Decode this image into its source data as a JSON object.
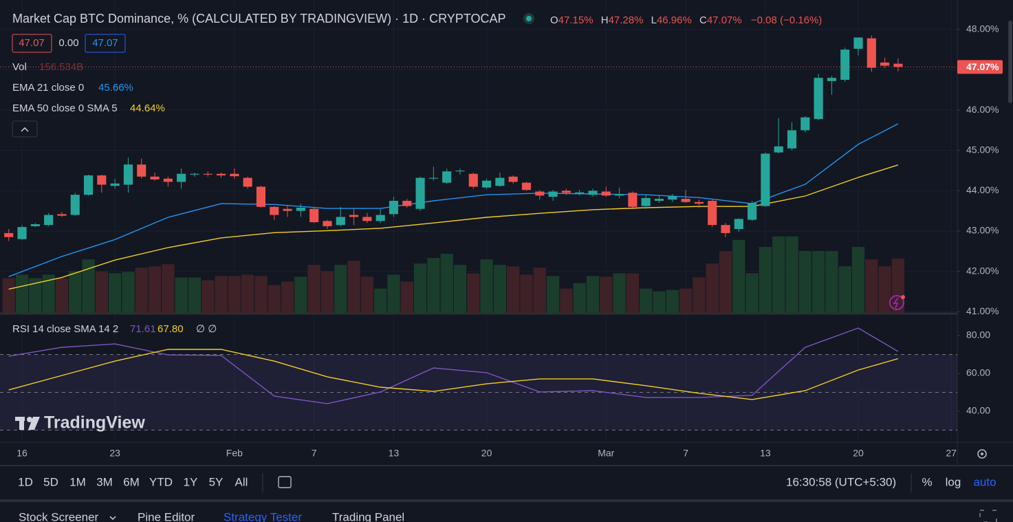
{
  "header": {
    "title": "Market Cap BTC Dominance, % (CALCULATED BY TRADINGVIEW) · 1D · CRYPTOCAP",
    "ohlc": [
      {
        "label": "O",
        "value": "47.15%"
      },
      {
        "label": "H",
        "value": "47.28%"
      },
      {
        "label": "L",
        "value": "46.96%"
      },
      {
        "label": "C",
        "value": "47.07%"
      }
    ],
    "change": "−0.08 (−0.16%)",
    "sell": "47.07",
    "spread": "0.00",
    "buy": "47.07"
  },
  "chart_data": [
    {
      "type": "candlestick",
      "xlim": [
        -0.66,
        71.46
      ],
      "xticks": [
        {
          "value": 1,
          "label": "16"
        },
        {
          "value": 8,
          "label": "23"
        },
        {
          "value": 17,
          "label": "Feb"
        },
        {
          "value": 23,
          "label": "7"
        },
        {
          "value": 29,
          "label": "13"
        },
        {
          "value": 36,
          "label": "20"
        },
        {
          "value": 45,
          "label": "Mar"
        },
        {
          "value": 51,
          "label": "7"
        },
        {
          "value": 57,
          "label": "13"
        },
        {
          "value": 64,
          "label": "20"
        },
        {
          "value": 71,
          "label": "27"
        }
      ],
      "ylim": [
        40.97,
        48.73
      ],
      "yticks": [
        {
          "value": 41,
          "label": "41.00%"
        },
        {
          "value": 42,
          "label": "42.00%"
        },
        {
          "value": 43,
          "label": "43.00%"
        },
        {
          "value": 44,
          "label": "44.00%"
        },
        {
          "value": 45,
          "label": "45.00%"
        },
        {
          "value": 46,
          "label": "46.00%"
        },
        {
          "value": 47,
          "label": "47.00%"
        },
        {
          "value": 48,
          "label": "48.00%"
        }
      ],
      "grid": true,
      "up_color": "#26a69a",
      "down_color": "#ef5350",
      "open": [
        42.95,
        42.8,
        43.12,
        43.15,
        43.42,
        43.4,
        43.9,
        44.38,
        44.12,
        44.15,
        44.65,
        44.35,
        44.3,
        44.22,
        44.4,
        44.42,
        44.42,
        44.42,
        44.32,
        44.1,
        43.6,
        43.55,
        43.5,
        43.55,
        43.25,
        43.15,
        43.4,
        43.35,
        43.25,
        43.42,
        43.75,
        43.55,
        44.3,
        44.2,
        44.48,
        44.42,
        44.08,
        44.12,
        44.35,
        44.2,
        43.98,
        43.85,
        44.0,
        43.92,
        43.9,
        43.98,
        43.88,
        43.95,
        43.62,
        43.75,
        43.78,
        43.8,
        43.72,
        43.75,
        43.15,
        43.05,
        43.28,
        43.62,
        44.95,
        45.05,
        45.5,
        45.78,
        46.72,
        46.75,
        47.52,
        47.78,
        47.18,
        47.15
      ],
      "high": [
        43.05,
        43.15,
        43.2,
        43.45,
        43.48,
        43.95,
        44.4,
        44.4,
        44.3,
        44.82,
        44.8,
        44.45,
        44.35,
        44.55,
        44.45,
        44.48,
        44.45,
        44.55,
        44.35,
        44.12,
        43.62,
        43.65,
        43.68,
        43.6,
        43.28,
        43.6,
        43.55,
        43.45,
        43.55,
        43.85,
        43.8,
        44.35,
        44.6,
        44.55,
        44.55,
        44.45,
        44.3,
        44.45,
        44.38,
        44.22,
        44.02,
        44.02,
        44.05,
        44.02,
        44.05,
        44.1,
        44.08,
        43.98,
        43.9,
        43.88,
        43.92,
        44.02,
        43.78,
        43.78,
        43.2,
        43.32,
        43.75,
        44.95,
        45.8,
        45.7,
        45.85,
        46.9,
        46.85,
        47.55,
        47.8,
        47.85,
        47.3,
        47.28
      ],
      "low": [
        42.75,
        42.78,
        43.1,
        43.12,
        43.35,
        43.38,
        43.88,
        43.95,
        44.05,
        43.95,
        44.3,
        44.25,
        44.1,
        44.05,
        44.35,
        44.35,
        44.32,
        44.3,
        44.05,
        43.58,
        43.28,
        43.35,
        43.35,
        43.2,
        43.05,
        43.12,
        43.15,
        43.2,
        43.2,
        43.35,
        43.58,
        43.5,
        44.25,
        44.18,
        44.4,
        44.05,
        44.05,
        44.1,
        44.18,
        44.0,
        43.78,
        43.75,
        43.9,
        43.88,
        43.85,
        43.85,
        43.82,
        43.58,
        43.55,
        43.7,
        43.72,
        43.7,
        43.58,
        43.1,
        42.85,
        42.98,
        43.25,
        43.6,
        44.92,
        45.0,
        45.45,
        45.75,
        46.38,
        46.7,
        47.35,
        46.95,
        47.05,
        46.96
      ],
      "close": [
        42.85,
        43.1,
        43.17,
        43.4,
        43.38,
        43.9,
        44.38,
        44.15,
        44.18,
        44.65,
        44.35,
        44.28,
        44.22,
        44.42,
        44.42,
        44.4,
        44.38,
        44.36,
        44.1,
        43.6,
        43.4,
        43.5,
        43.58,
        43.22,
        43.12,
        43.35,
        43.35,
        43.25,
        43.4,
        43.75,
        43.62,
        44.32,
        44.32,
        44.48,
        44.5,
        44.1,
        44.25,
        44.32,
        44.22,
        44.02,
        43.88,
        43.98,
        43.95,
        43.96,
        44.0,
        43.88,
        43.92,
        43.6,
        43.82,
        43.8,
        43.86,
        43.72,
        43.68,
        43.15,
        42.95,
        43.3,
        43.7,
        44.92,
        45.1,
        45.5,
        45.82,
        46.8,
        46.8,
        47.5,
        47.8,
        47.05,
        47.1,
        47.07
      ],
      "price_label": "47.07%",
      "volume": {
        "name": "Vol",
        "ylim": [
          0,
          900
        ],
        "up_color": "#1b3d2c",
        "down_color": "#3f2128",
        "values": [
          100,
          110,
          100,
          110,
          100,
          120,
          154,
          120,
          114,
          118,
          130,
          134,
          140,
          102,
          102,
          94,
          106,
          106,
          110,
          106,
          80,
          90,
          104,
          138,
          120,
          138,
          150,
          104,
          70,
          110,
          90,
          142,
          158,
          170,
          138,
          114,
          154,
          138,
          134,
          110,
          130,
          106,
          70,
          86,
          106,
          104,
          114,
          114,
          70,
          62,
          66,
          70,
          102,
          142,
          178,
          210,
          114,
          190,
          220,
          220,
          178,
          178,
          178,
          134,
          190,
          154,
          134,
          156.534
        ],
        "value_labels": {
          "67": "156.534B"
        }
      },
      "series": [
        {
          "name": "EMA 21 close 0",
          "color": "#2196f3",
          "value_label": "45.66%",
          "x": [
            0,
            4,
            8,
            12,
            16,
            20,
            24,
            28,
            32,
            36,
            40,
            44,
            48,
            52,
            56,
            60,
            64,
            67
          ],
          "values": [
            41.87,
            42.37,
            42.79,
            43.34,
            43.68,
            43.66,
            43.56,
            43.56,
            43.75,
            43.9,
            43.94,
            43.92,
            43.9,
            43.83,
            43.68,
            44.16,
            45.15,
            45.66
          ]
        },
        {
          "name": "EMA 50 close 0 SMA 5",
          "color": "#f5d020",
          "value_label": "44.64%",
          "x": [
            0,
            4,
            8,
            12,
            16,
            20,
            24,
            28,
            32,
            36,
            40,
            44,
            48,
            52,
            56,
            60,
            64,
            67
          ],
          "values": [
            41.56,
            41.85,
            42.28,
            42.59,
            42.83,
            42.96,
            43.01,
            43.07,
            43.2,
            43.34,
            43.44,
            43.53,
            43.58,
            43.61,
            43.61,
            43.87,
            44.33,
            44.64
          ]
        }
      ]
    },
    {
      "type": "line",
      "name": "RSI 14 close SMA 14 2",
      "ylim": [
        24.7,
        90.9
      ],
      "yticks": [
        {
          "value": 40,
          "label": "40.00"
        },
        {
          "value": 60,
          "label": "60.00"
        },
        {
          "value": 80,
          "label": "80.00"
        }
      ],
      "band": [
        30,
        70
      ],
      "levels": [
        30,
        50,
        70
      ],
      "extra_label": "∅ ∅",
      "series": [
        {
          "name": "RSI",
          "color": "#7e57c2",
          "value_label": "71.61",
          "x": [
            0,
            4,
            8,
            12,
            16,
            20,
            24,
            28,
            32,
            36,
            40,
            44,
            48,
            52,
            56,
            60,
            64,
            67
          ],
          "values": [
            69.1,
            73.8,
            75.6,
            69.8,
            69.5,
            48.0,
            44.0,
            50.2,
            62.9,
            60.4,
            50.2,
            50.9,
            47.3,
            47.3,
            48.4,
            73.8,
            84.0,
            71.61
          ]
        },
        {
          "name": "SMA",
          "color": "#f5d020",
          "value_label": "67.80",
          "x": [
            0,
            4,
            8,
            12,
            16,
            20,
            24,
            28,
            32,
            36,
            40,
            44,
            48,
            52,
            56,
            60,
            64,
            67
          ],
          "values": [
            51.3,
            58.9,
            66.5,
            72.7,
            72.7,
            66.5,
            58.2,
            52.7,
            50.5,
            54.5,
            57.1,
            57.1,
            53.5,
            49.5,
            46.2,
            50.9,
            61.8,
            67.8
          ]
        }
      ]
    }
  ],
  "logo": "TradingView",
  "toolbar": {
    "ranges": [
      "1D",
      "5D",
      "1M",
      "3M",
      "6M",
      "YTD",
      "1Y",
      "5Y",
      "All"
    ],
    "clock": "16:30:58 (UTC+5:30)",
    "options": [
      "%",
      "log",
      "auto"
    ]
  },
  "tabs": [
    "Stock Screener",
    "Pine Editor",
    "Strategy Tester",
    "Trading Panel"
  ]
}
